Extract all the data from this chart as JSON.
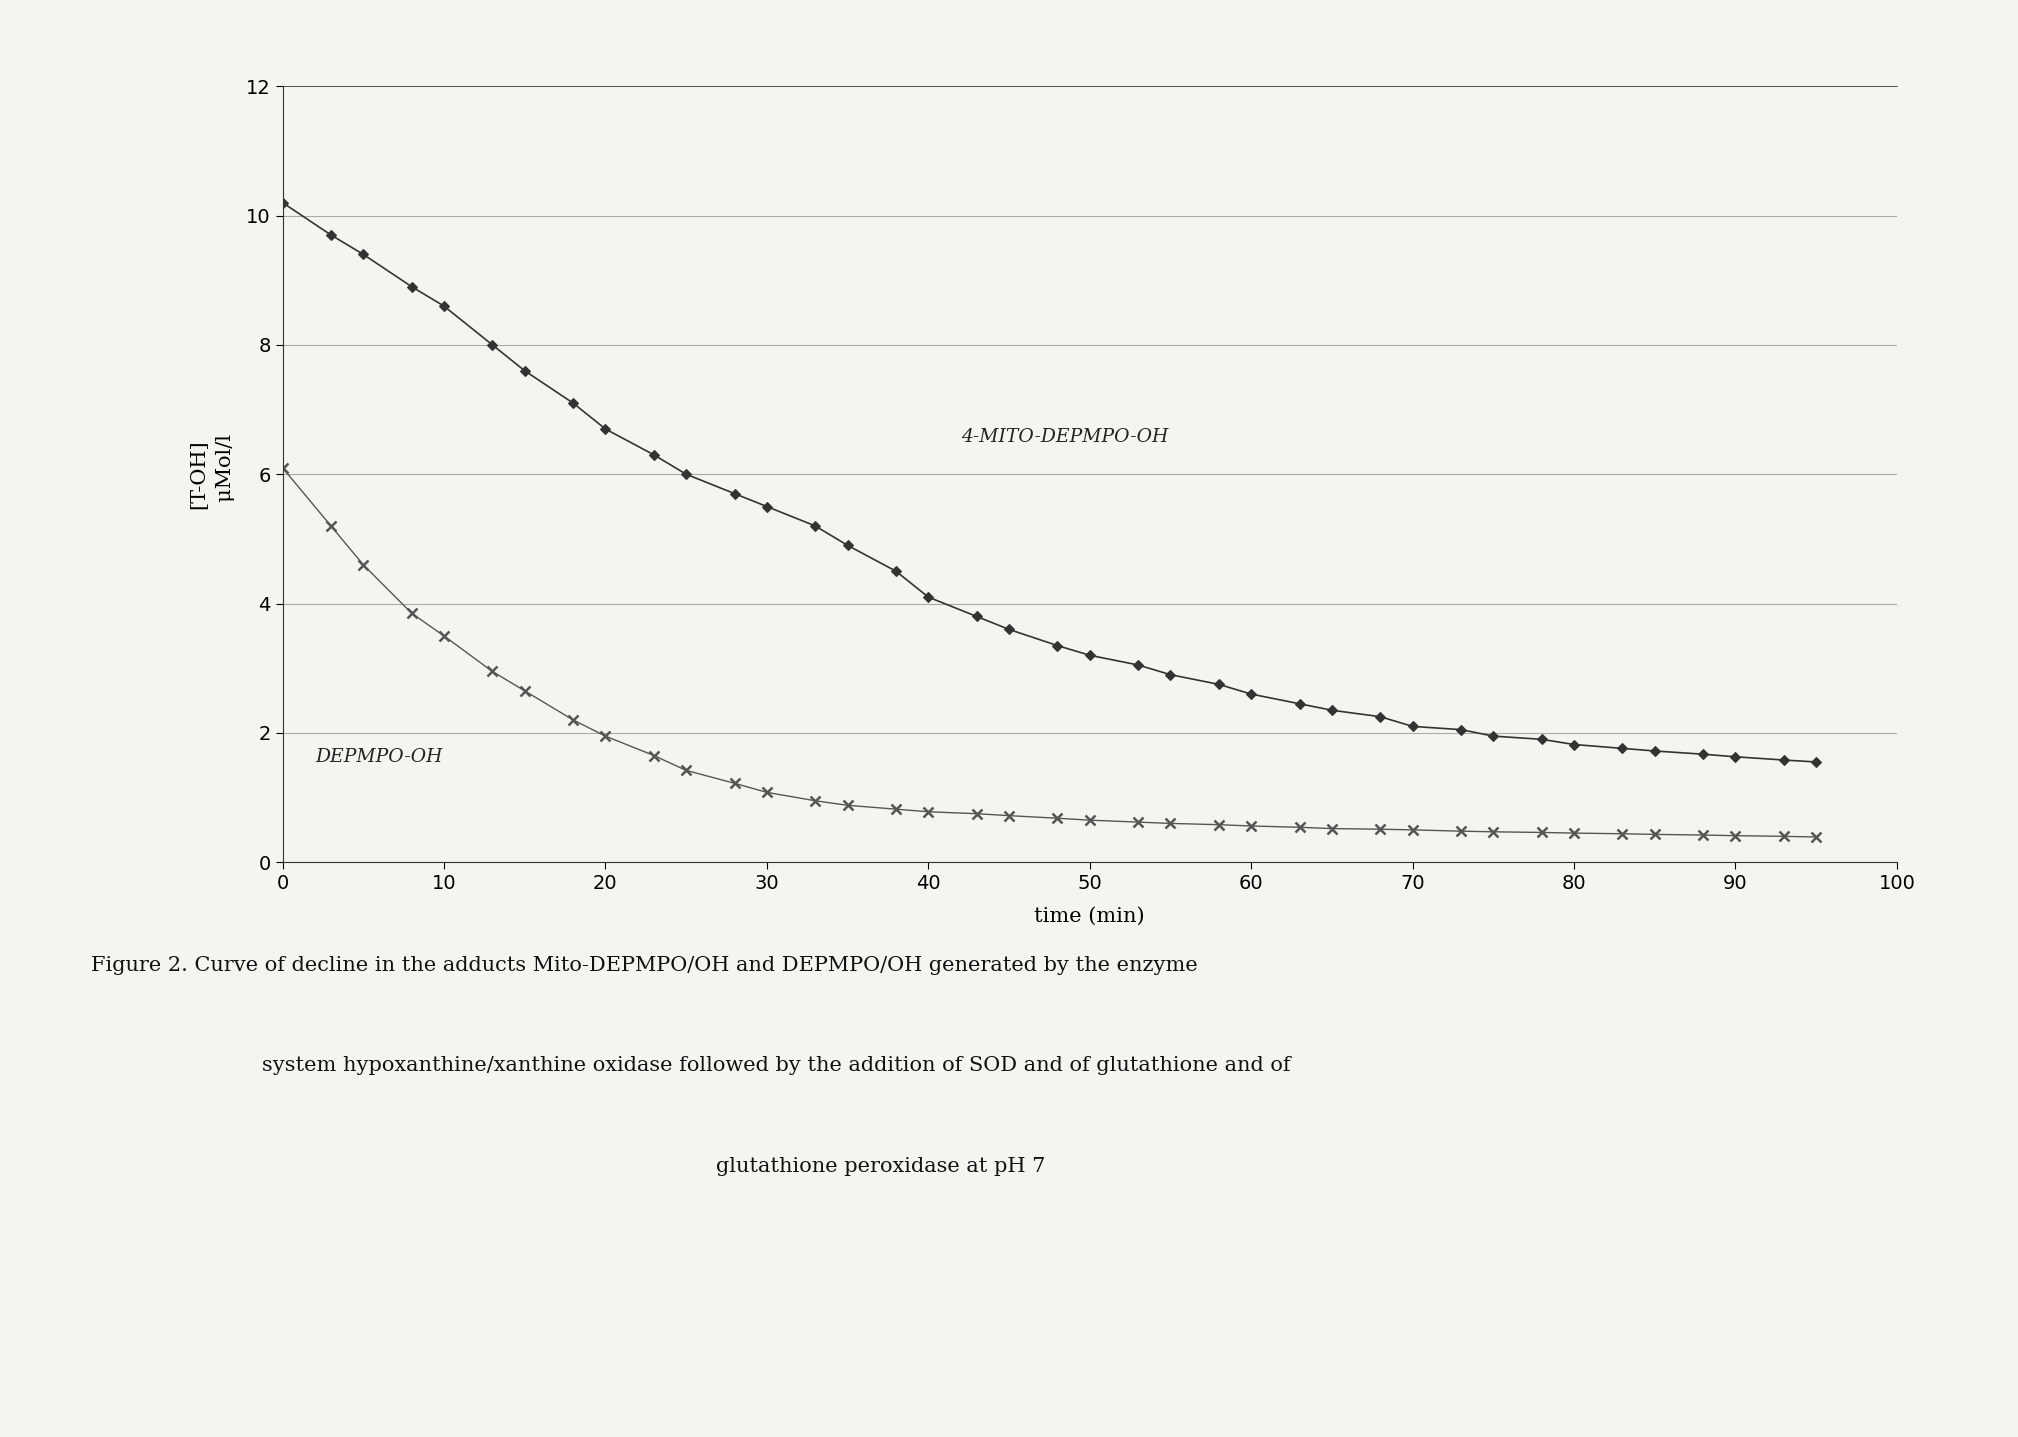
{
  "title": "",
  "xlabel": "time (min)",
  "ylabel_line1": "[T-OH]",
  "ylabel_line2": "  μMol/l",
  "xlim": [
    0,
    100
  ],
  "ylim": [
    0,
    12
  ],
  "xticks": [
    0,
    10,
    20,
    30,
    40,
    50,
    60,
    70,
    80,
    90,
    100
  ],
  "yticks": [
    0,
    2,
    4,
    6,
    8,
    10,
    12
  ],
  "background_color": "#f5f5f0",
  "grid_color": "#999999",
  "mito_label": "4-MITO-DEPMPO-OH",
  "depmpo_label": "DEPMPO-OH",
  "mito_x": [
    0,
    3,
    5,
    8,
    10,
    13,
    15,
    18,
    20,
    23,
    25,
    28,
    30,
    33,
    35,
    38,
    40,
    43,
    45,
    48,
    50,
    53,
    55,
    58,
    60,
    63,
    65,
    68,
    70,
    73,
    75,
    78,
    80,
    83,
    85,
    88,
    90,
    93,
    95
  ],
  "mito_y": [
    10.2,
    9.7,
    9.4,
    8.9,
    8.6,
    8.0,
    7.6,
    7.1,
    6.7,
    6.3,
    6.0,
    5.7,
    5.5,
    5.2,
    4.9,
    4.5,
    4.1,
    3.8,
    3.6,
    3.35,
    3.2,
    3.05,
    2.9,
    2.75,
    2.6,
    2.45,
    2.35,
    2.25,
    2.1,
    2.05,
    1.95,
    1.9,
    1.82,
    1.76,
    1.72,
    1.67,
    1.63,
    1.58,
    1.55
  ],
  "depmpo_x": [
    0,
    3,
    5,
    8,
    10,
    13,
    15,
    18,
    20,
    23,
    25,
    28,
    30,
    33,
    35,
    38,
    40,
    43,
    45,
    48,
    50,
    53,
    55,
    58,
    60,
    63,
    65,
    68,
    70,
    73,
    75,
    78,
    80,
    83,
    85,
    88,
    90,
    93,
    95
  ],
  "depmpo_y": [
    6.1,
    5.2,
    4.6,
    3.85,
    3.5,
    2.95,
    2.65,
    2.2,
    1.95,
    1.65,
    1.42,
    1.22,
    1.08,
    0.95,
    0.88,
    0.82,
    0.78,
    0.75,
    0.72,
    0.68,
    0.65,
    0.62,
    0.6,
    0.58,
    0.56,
    0.54,
    0.52,
    0.51,
    0.5,
    0.48,
    0.47,
    0.46,
    0.45,
    0.44,
    0.43,
    0.42,
    0.41,
    0.4,
    0.39
  ],
  "mito_color": "#333333",
  "depmpo_color": "#555555",
  "caption_line1": "Figure 2. Curve of decline in the adducts Mito-DEPMPO/OH and DEPMPO/OH generated by the enzyme",
  "caption_line2": "system hypoxanthine/xanthine oxidase followed by the addition of SOD and of glutathione and of",
  "caption_line3": "glutathione peroxidase at pH 7",
  "caption_fontsize": 15,
  "tick_fontsize": 14,
  "label_fontsize": 15
}
